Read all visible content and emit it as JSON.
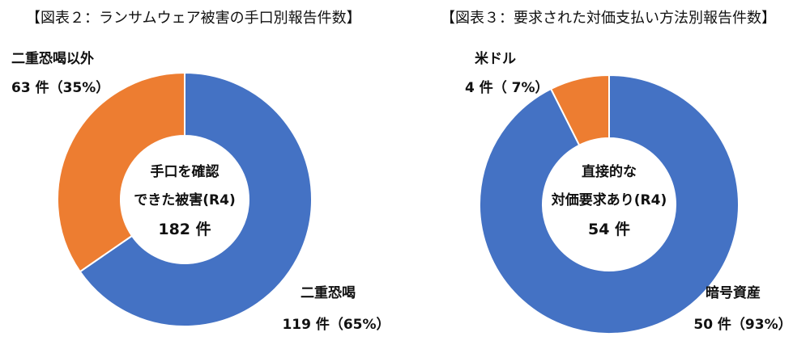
{
  "chart_data": [
    {
      "type": "pie",
      "title": "【図表２：ランサムウェア被害の手口別報告件数】",
      "center_text": [
        "手口を確認",
        "できた被害(R4)",
        "182 件"
      ],
      "total": 182,
      "slices": [
        {
          "name": "二重恐喝",
          "value": 119,
          "value_label": "119 件（65%）",
          "color": "#4472C4"
        },
        {
          "name": "二重恐喝以外",
          "value": 63,
          "value_label": "63 件（35%）",
          "color": "#ED7D31"
        }
      ]
    },
    {
      "type": "pie",
      "title": "【図表３：要求された対価支払い方法別報告件数】",
      "center_text": [
        "直接的な",
        "対価要求あり(R4)",
        "54 件"
      ],
      "total": 54,
      "slices": [
        {
          "name": "暗号資産",
          "value": 50,
          "value_label": "50 件（93%）",
          "color": "#4472C4"
        },
        {
          "name": "米ドル",
          "value": 4,
          "value_label": "4 件（ 7%）",
          "color": "#ED7D31"
        }
      ]
    }
  ]
}
